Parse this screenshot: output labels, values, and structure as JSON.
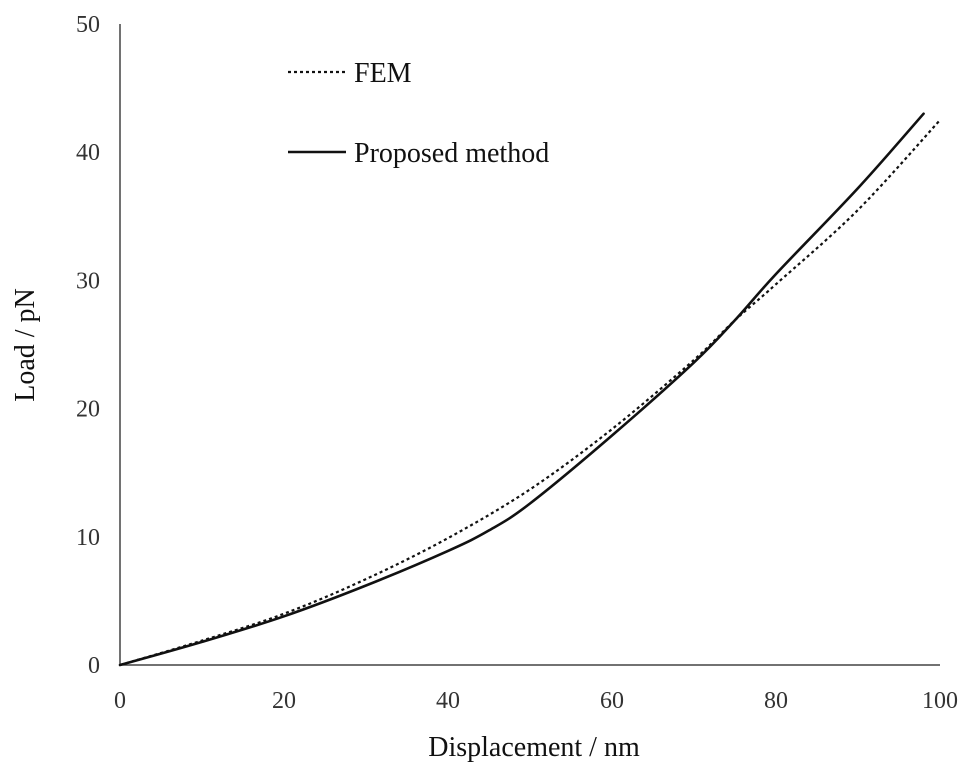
{
  "chart_data": {
    "type": "line",
    "title": "",
    "xlabel": "Displacement / nm",
    "ylabel": "Load / pN",
    "xlim": [
      0,
      100
    ],
    "ylim": [
      0,
      50
    ],
    "xticks": [
      "0",
      "20",
      "40",
      "60",
      "80",
      "100"
    ],
    "yticks": [
      "0",
      "10",
      "20",
      "30",
      "40",
      "50"
    ],
    "grid": false,
    "legend_position": "top-left",
    "series": [
      {
        "name": "FEM",
        "style": "dashed",
        "color": "#111111",
        "x": [
          0,
          10,
          20,
          30,
          40,
          50,
          60,
          70,
          75,
          80,
          90,
          100
        ],
        "y": [
          0,
          1.9,
          4.0,
          6.7,
          9.9,
          13.7,
          18.4,
          23.8,
          26.9,
          29.7,
          35.5,
          42.5
        ]
      },
      {
        "name": "Proposed method",
        "style": "solid",
        "color": "#111111",
        "x": [
          0,
          10,
          20,
          30,
          40,
          45,
          50,
          60,
          70,
          75,
          80,
          90,
          98
        ],
        "y": [
          0,
          1.8,
          3.8,
          6.2,
          8.9,
          10.5,
          12.6,
          17.9,
          23.6,
          26.9,
          30.5,
          37.2,
          43.0
        ]
      }
    ]
  }
}
